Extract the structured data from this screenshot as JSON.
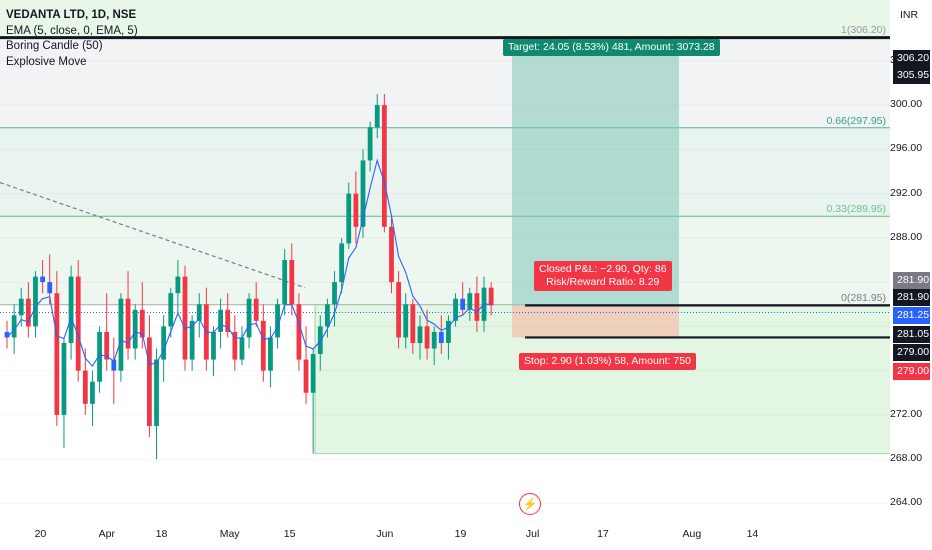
{
  "legend": {
    "symbol": "VEDANTA LTD, 1D, NSE",
    "ema": "EMA (5, close, 0, EMA, 5)",
    "boring": "Boring Candle (50)",
    "explosive": "Explosive Move"
  },
  "currency": "INR",
  "position": {
    "target_label": "Target: 24.05 (8.53%) 481, Amount: 3073.28",
    "pnl_label": "Closed P&L: −2.90, Qty: 86",
    "rr_label": "Risk/Reward Ratio: 8.29",
    "stop_label": "Stop: 2.90 (1.03%) 58, Amount: 750",
    "entry": 281.9,
    "target": 305.95,
    "stop": 279.0
  },
  "fib_labels": [
    {
      "text": "1(306.20)",
      "price": 306.2
    },
    {
      "text": "0.66(297.95)",
      "price": 297.95
    },
    {
      "text": "0.33(289.95)",
      "price": 289.95
    },
    {
      "text": "0(281.95)",
      "price": 281.95
    }
  ],
  "price_tags": [
    {
      "text": "306.20",
      "price": 306.2,
      "color": "#131722"
    },
    {
      "text": "305.95",
      "price": 305.95,
      "color": "#131722"
    },
    {
      "text": "281.90",
      "price": 281.9,
      "color": "#787b86"
    },
    {
      "text": "281.90",
      "price": 281.9,
      "color": "#131722",
      "slot": "b"
    },
    {
      "text": "281.25",
      "price": 281.25,
      "color": "#2962ff"
    },
    {
      "text": "281.05",
      "price": 281.05,
      "color": "#131722"
    },
    {
      "text": "279.00",
      "price": 279.0,
      "color": "#131722"
    },
    {
      "text": "279.00",
      "price": 279.0,
      "color": "#f23645",
      "slot": "b"
    }
  ],
  "y_ticks": [
    "304.00",
    "300.00",
    "296.00",
    "292.00",
    "288.00",
    "272.00",
    "268.00",
    "264.00"
  ],
  "x_ticks": [
    "20",
    "Apr",
    "18",
    "May",
    "15",
    "Jun",
    "19",
    "Jul",
    "17",
    "Aug",
    "14"
  ],
  "chart_data": {
    "type": "candlestick",
    "ylim": [
      262.5,
      309.5
    ],
    "y_ticks": [
      264,
      268,
      272,
      276,
      280,
      284,
      288,
      292,
      296,
      300,
      304
    ],
    "x_ticks": [
      {
        "label": "20",
        "index": 5
      },
      {
        "label": "Apr",
        "index": 14
      },
      {
        "label": "18",
        "index": 22
      },
      {
        "label": "May",
        "index": 31
      },
      {
        "label": "15",
        "index": 40
      },
      {
        "label": "Jun",
        "index": 53
      },
      {
        "label": "19",
        "index": 64
      },
      {
        "label": "Jul",
        "index": 74
      },
      {
        "label": "17",
        "index": 84
      },
      {
        "label": "Aug",
        "index": 96
      },
      {
        "label": "14",
        "index": 105
      }
    ],
    "series": [
      {
        "name": "VEDANTA LTD",
        "candles": [
          [
            279.5,
            280.5,
            278.0,
            279.0
          ],
          [
            279.0,
            282.0,
            277.5,
            281.0
          ],
          [
            281.0,
            283.5,
            280.0,
            282.5
          ],
          [
            282.5,
            284.0,
            279.0,
            280.0
          ],
          [
            280.0,
            285.0,
            279.0,
            284.5
          ],
          [
            284.5,
            286.0,
            283.0,
            284.0
          ],
          [
            284.0,
            286.5,
            282.0,
            283.0
          ],
          [
            283.0,
            285.0,
            271.0,
            272.0
          ],
          [
            272.0,
            279.0,
            269.0,
            278.5
          ],
          [
            278.5,
            285.5,
            277.0,
            284.5
          ],
          [
            284.5,
            286.0,
            275.0,
            276.0
          ],
          [
            276.0,
            278.0,
            272.0,
            273.0
          ],
          [
            273.0,
            276.0,
            271.0,
            275.0
          ],
          [
            275.0,
            280.0,
            274.0,
            279.5
          ],
          [
            279.5,
            283.0,
            276.0,
            277.0
          ],
          [
            277.0,
            279.0,
            273.0,
            276.0
          ],
          [
            276.0,
            283.0,
            275.0,
            282.5
          ],
          [
            282.5,
            285.0,
            277.0,
            278.0
          ],
          [
            278.0,
            282.0,
            277.0,
            281.5
          ],
          [
            281.5,
            284.0,
            278.0,
            279.0
          ],
          [
            279.0,
            281.0,
            270.0,
            271.0
          ],
          [
            271.0,
            278.0,
            268.0,
            277.0
          ],
          [
            277.0,
            281.0,
            275.0,
            280.0
          ],
          [
            280.0,
            283.5,
            279.0,
            283.0
          ],
          [
            283.0,
            286.0,
            281.0,
            284.5
          ],
          [
            284.5,
            285.5,
            276.0,
            277.0
          ],
          [
            277.0,
            281.0,
            276.0,
            280.5
          ],
          [
            280.5,
            283.0,
            279.0,
            282.0
          ],
          [
            282.0,
            283.5,
            276.0,
            277.0
          ],
          [
            277.0,
            280.0,
            275.5,
            279.5
          ],
          [
            279.5,
            282.5,
            278.0,
            281.5
          ],
          [
            281.5,
            283.0,
            279.0,
            279.5
          ],
          [
            279.5,
            281.0,
            276.0,
            277.0
          ],
          [
            277.0,
            280.0,
            276.5,
            279.0
          ],
          [
            279.0,
            283.0,
            278.0,
            282.5
          ],
          [
            282.5,
            284.0,
            280.0,
            280.5
          ],
          [
            280.5,
            282.0,
            275.0,
            276.0
          ],
          [
            276.0,
            280.0,
            274.5,
            279.0
          ],
          [
            279.0,
            282.5,
            278.0,
            282.0
          ],
          [
            282.0,
            287.0,
            281.0,
            286.0
          ],
          [
            286.0,
            287.5,
            281.0,
            282.0
          ],
          [
            282.0,
            283.0,
            276.0,
            277.0
          ],
          [
            277.0,
            280.0,
            273.0,
            274.0
          ],
          [
            274.0,
            278.0,
            268.5,
            277.5
          ],
          [
            277.5,
            281.0,
            276.0,
            280.0
          ],
          [
            280.0,
            282.5,
            279.0,
            282.0
          ],
          [
            282.0,
            285.0,
            280.0,
            284.0
          ],
          [
            284.0,
            288.0,
            283.0,
            287.5
          ],
          [
            287.5,
            293.0,
            287.0,
            292.0
          ],
          [
            292.0,
            294.0,
            287.5,
            289.0
          ],
          [
            289.0,
            296.0,
            288.0,
            295.0
          ],
          [
            295.0,
            298.5,
            294.0,
            298.0
          ],
          [
            298.0,
            301.0,
            297.0,
            300.0
          ],
          [
            300.0,
            301.0,
            288.5,
            289.0
          ],
          [
            289.0,
            290.0,
            283.0,
            284.0
          ],
          [
            284.0,
            285.0,
            278.0,
            279.0
          ],
          [
            279.0,
            283.0,
            278.0,
            282.0
          ],
          [
            282.0,
            282.5,
            277.5,
            278.5
          ],
          [
            278.5,
            281.0,
            277.0,
            280.0
          ],
          [
            280.0,
            281.5,
            277.0,
            278.0
          ],
          [
            278.0,
            280.0,
            276.5,
            279.5
          ],
          [
            279.5,
            281.0,
            277.5,
            278.5
          ],
          [
            278.5,
            281.0,
            277.0,
            280.5
          ],
          [
            280.5,
            283.0,
            280.0,
            282.5
          ],
          [
            282.5,
            284.0,
            281.0,
            281.5
          ],
          [
            281.5,
            283.5,
            280.5,
            283.0
          ],
          [
            283.0,
            284.5,
            279.5,
            280.5
          ],
          [
            280.5,
            284.5,
            279.5,
            283.5
          ],
          [
            283.5,
            284.0,
            281.0,
            281.9
          ]
        ]
      },
      {
        "name": "EMA (5, close, 0, EMA, 5)"
      }
    ]
  }
}
